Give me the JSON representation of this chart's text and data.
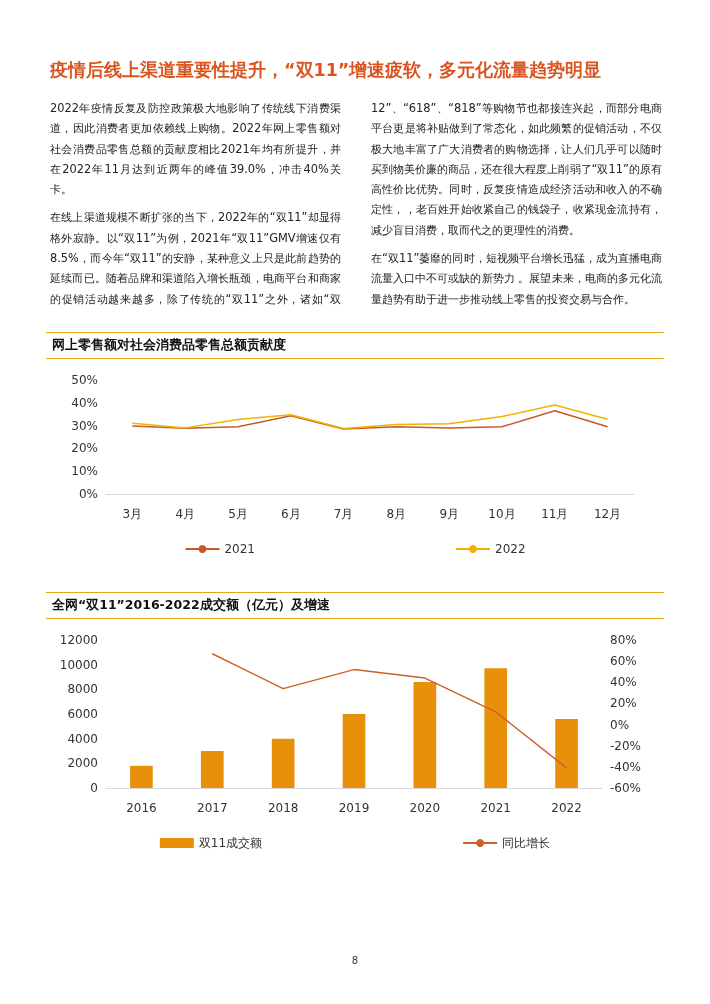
{
  "chart_data": [
    {
      "type": "other",
      "title": "疫情后线上渠道重要性提升，“双11”增速疲软，多元化流量趋势明显",
      "annotations": [
        "2022年疫情反复及防控政策极大地影响了传统线下消费渠道，因此消费者更加依赖线上购物。2022年网上零售额对社会消费品零售总额的贡献度相比2021年均有所提升，并在2022年11月达到近两年的峰值39.0%，冲击40%关卡。",
        "在线上渠道规模不断扩张的当下，2022年的“双11”却显得格外寂静。以“双11”为例，2021年“双11”GMV增速仅有8.5%，而今年“双11”的安静，某种意义上只是此前趋势的延续而已。随着品牌和渠道陷入增长瓶颈，电商平台和商家的促销活动越来越多，除了传统的“双11”之外，诸如“双12”、“618”、“818”等购物节也都接连兴起，而部分电商平台更是将补贴做到了常态化，如此频繁的促销活动，不仅极大地丰富了广大消费者的购物选择，让人们几乎可以随时买到物美价廉的商品，还在很大程度上削弱了“双11”的原有高性价比优势。同时，反复疫情造成经济活动和收入的不确定性，，老百姓开始收紧自己的钱袋子，收紧现金流持有，减少盲目消费，取而代之的更理性的消费。",
        "在“双11”萎靡的同时，短视频平台增长迅猛，成为直播电商流量入口中不可或缺的新势力 。展望未来，电商的多元化流量趋势有助于进一步推动线上零售的投资交易与合作。",
        "8"
      ]
    },
    {
      "type": "line",
      "title": "网上零售额对社会消费品零售总额贡献度",
      "categories": [
        "3月",
        "4月",
        "5月",
        "6月",
        "7月",
        "8月",
        "9月",
        "10月",
        "11月",
        "12月"
      ],
      "series": [
        {
          "name": "2021",
          "color": "#c8582a",
          "values": [
            29.8,
            28.8,
            29.5,
            34.3,
            28.5,
            29.5,
            29,
            29.5,
            36.5,
            29.5
          ]
        },
        {
          "name": "2022",
          "color": "#f0b400",
          "values": [
            31,
            29,
            32.7,
            34.8,
            28.7,
            30.5,
            30.8,
            34,
            39.0,
            32.8
          ]
        }
      ],
      "ylim": [
        0,
        50
      ],
      "yticks": [
        {
          "value": 0,
          "label": "0%"
        },
        {
          "value": 10,
          "label": "10%"
        },
        {
          "value": 20,
          "label": "20%"
        },
        {
          "value": 30,
          "label": "30%"
        },
        {
          "value": 40,
          "label": "40%"
        },
        {
          "value": 50,
          "label": "50%"
        }
      ],
      "grid": false,
      "legend": "bottom",
      "marker": "none",
      "line_style": "solid"
    },
    {
      "type": "bar",
      "title": "全网“双11”2016-2022成交额（亿元）及增速",
      "categories": [
        "2016",
        "2017",
        "2018",
        "2019",
        "2020",
        "2021",
        "2022"
      ],
      "series": [
        {
          "name": "双11成交额",
          "type": "bar",
          "color": "#e8900a",
          "values": [
            1800,
            3000,
            4000,
            6000,
            8600,
            9700,
            5600
          ]
        },
        {
          "name": "同比增长",
          "type": "line",
          "axis": "y2",
          "color": "#d0602a",
          "values": [
            null,
            67,
            34,
            52,
            44,
            12,
            -41
          ]
        }
      ],
      "ylim": [
        0,
        12000
      ],
      "yticks": [
        0,
        2000,
        4000,
        6000,
        8000,
        10000,
        12000
      ],
      "y2lim": [
        -60,
        80
      ],
      "y2ticks": [
        {
          "value": -60,
          "label": "-60%"
        },
        {
          "value": -40,
          "label": "-40%"
        },
        {
          "value": -20,
          "label": "-20%"
        },
        {
          "value": 0,
          "label": "0%"
        },
        {
          "value": 20,
          "label": "20%"
        },
        {
          "value": 40,
          "label": "40%"
        },
        {
          "value": 60,
          "label": "60%"
        },
        {
          "value": 80,
          "label": "80%"
        }
      ],
      "grid": false,
      "legend": "bottom",
      "marker": "none",
      "line_style": "solid"
    }
  ]
}
